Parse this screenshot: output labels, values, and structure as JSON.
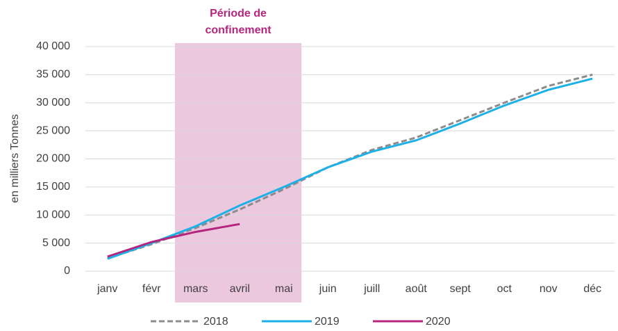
{
  "chart_data": {
    "type": "line",
    "y_label": "en milliers Tonnes",
    "annotation": {
      "text": "Période de confinement",
      "x_range": [
        "mars",
        "mai"
      ],
      "color": "#b5257e",
      "fill": "#ecc8df"
    },
    "categories": [
      "janv",
      "févr",
      "mars",
      "avril",
      "mai",
      "juin",
      "juill",
      "août",
      "sept",
      "oct",
      "nov",
      "déc"
    ],
    "series": [
      {
        "name": "2018",
        "color": "#8c8c8c",
        "dashed": true,
        "values": [
          2300,
          4800,
          7700,
          11000,
          14600,
          18500,
          21600,
          23800,
          26900,
          30000,
          33000,
          35000
        ]
      },
      {
        "name": "2019",
        "color": "#1cb0e8",
        "dashed": false,
        "values": [
          2200,
          5000,
          8000,
          11700,
          15000,
          18500,
          21300,
          23300,
          26300,
          29500,
          32300,
          34300
        ]
      },
      {
        "name": "2020",
        "color": "#b5257e",
        "dashed": false,
        "values": [
          2600,
          5200,
          7000,
          8400,
          null,
          null,
          null,
          null,
          null,
          null,
          null,
          null
        ]
      }
    ],
    "ylim": [
      0,
      40000
    ],
    "yticks": [
      0,
      {
        "value": 5000,
        "label": "5 000"
      },
      {
        "value": 10000,
        "label": "10 000"
      },
      {
        "value": 15000,
        "label": "15 000"
      },
      {
        "value": 20000,
        "label": "20 000"
      },
      {
        "value": 25000,
        "label": "25 000"
      },
      {
        "value": 30000,
        "label": "30 000"
      },
      {
        "value": 35000,
        "label": "35 000"
      },
      {
        "value": 40000,
        "label": "40 000"
      }
    ],
    "grid": true,
    "legend": "bottom"
  }
}
